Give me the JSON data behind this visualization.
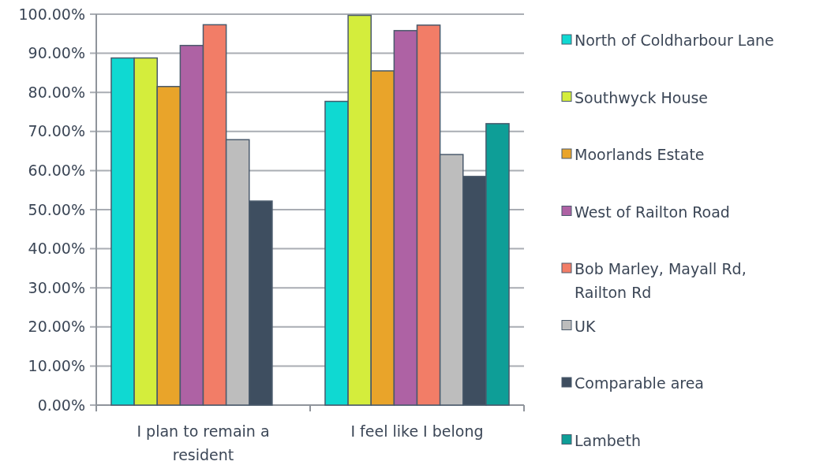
{
  "chart_data": {
    "type": "bar",
    "categories": [
      "I plan to remain a resident",
      "I feel like I belong"
    ],
    "series": [
      {
        "name": "North of Coldharbour Lane",
        "color": "#0fd9d2",
        "values": [
          88.8,
          77.7
        ]
      },
      {
        "name": "Southwyck House",
        "color": "#d4ed3c",
        "values": [
          88.8,
          99.7
        ]
      },
      {
        "name": "Moorlands Estate",
        "color": "#e9a42a",
        "values": [
          81.5,
          85.5
        ]
      },
      {
        "name": "West of Railton Road",
        "color": "#ae62a4",
        "values": [
          92.0,
          95.8
        ]
      },
      {
        "name": "Bob Marley, Mayall Rd, Railton Rd",
        "color": "#f27d67",
        "values": [
          97.3,
          97.2
        ]
      },
      {
        "name": "UK",
        "color": "#bdbdbd",
        "values": [
          67.9,
          64.1
        ]
      },
      {
        "name": "Comparable area",
        "color": "#3e4e60",
        "values": [
          52.2,
          58.5
        ]
      },
      {
        "name": "Lambeth",
        "color": "#0e9e97",
        "values": [
          null,
          72.0
        ]
      }
    ],
    "ylim": [
      0,
      100
    ],
    "yticks": [
      {
        "value": 0,
        "label": "0.00%"
      },
      {
        "value": 10,
        "label": "10.00%"
      },
      {
        "value": 20,
        "label": "20.00%"
      },
      {
        "value": 30,
        "label": "30.00%"
      },
      {
        "value": 40,
        "label": "40.00%"
      },
      {
        "value": 50,
        "label": "50.00%"
      },
      {
        "value": 60,
        "label": "60.00%"
      },
      {
        "value": 70,
        "label": "70.00%"
      },
      {
        "value": 80,
        "label": "80.00%"
      },
      {
        "value": 90,
        "label": "90.00%"
      },
      {
        "value": 100,
        "label": "100.00%"
      }
    ],
    "grid": "y",
    "legend": "right"
  }
}
